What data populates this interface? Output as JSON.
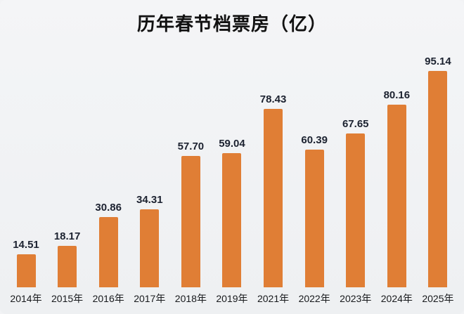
{
  "chart_data": {
    "type": "bar",
    "title": "历年春节档票房（亿）",
    "categories": [
      "2014年",
      "2015年",
      "2016年",
      "2017年",
      "2018年",
      "2019年",
      "2021年",
      "2022年",
      "2023年",
      "2024年",
      "2025年"
    ],
    "values": [
      14.51,
      18.17,
      30.86,
      34.31,
      57.7,
      59.04,
      78.43,
      60.39,
      67.65,
      80.16,
      95.14
    ],
    "value_labels": [
      "14.51",
      "18.17",
      "30.86",
      "34.31",
      "57.70",
      "59.04",
      "78.43",
      "60.39",
      "67.65",
      "80.16",
      "95.14"
    ],
    "xlabel": "",
    "ylabel": "",
    "ylim": [
      0,
      100
    ],
    "grid": false,
    "legend": "none",
    "bar_color": "#e07e35"
  }
}
